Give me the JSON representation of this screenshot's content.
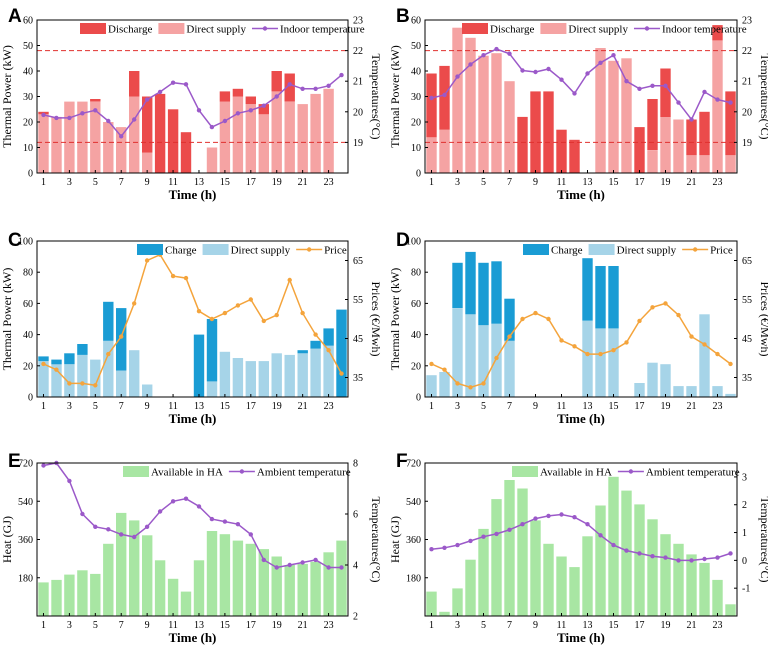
{
  "chart_data": [
    {
      "panel": "A",
      "type": "bar",
      "stacked": true,
      "categories": [
        1,
        2,
        3,
        4,
        5,
        6,
        7,
        8,
        9,
        10,
        11,
        12,
        13,
        14,
        15,
        16,
        17,
        18,
        19,
        20,
        21,
        22,
        23,
        24
      ],
      "xlabel": "Time (h)",
      "ylabel": "Thermal Power (kW)",
      "y2label": "Temperatures(°C)",
      "ylim": [
        0,
        60
      ],
      "y2lim": [
        18,
        23
      ],
      "xticks": [
        1,
        3,
        5,
        7,
        9,
        11,
        13,
        15,
        17,
        19,
        21,
        23
      ],
      "yticks": [
        0,
        10,
        20,
        30,
        40,
        50,
        60
      ],
      "y2ticks": [
        19,
        20,
        21,
        22,
        23
      ],
      "hlines": [
        22,
        19
      ],
      "series": [
        {
          "name": "Direct supply",
          "kind": "bar",
          "color": "#f5a3a3",
          "values": [
            23,
            22,
            28,
            28,
            28,
            20,
            18,
            30,
            8,
            0,
            0,
            0,
            0,
            10,
            28,
            30,
            27,
            23,
            32,
            28,
            27,
            31,
            33,
            0
          ]
        },
        {
          "name": "Discharge",
          "kind": "bar",
          "color": "#eb4b4b",
          "values": [
            1,
            0,
            0,
            0,
            1,
            0,
            0,
            10,
            22,
            31,
            25,
            16,
            0,
            0,
            4,
            3,
            3,
            4,
            8,
            11,
            0,
            0,
            0,
            0
          ]
        },
        {
          "name": "Indoor temperature",
          "kind": "line",
          "axis": "right",
          "color": "#9b59c9",
          "values": [
            19.9,
            19.8,
            19.8,
            19.95,
            20.05,
            19.7,
            19.2,
            19.75,
            20.4,
            20.65,
            20.95,
            20.9,
            20.05,
            19.5,
            19.7,
            19.95,
            20.05,
            20.2,
            20.5,
            20.9,
            20.75,
            20.75,
            20.85,
            21.2
          ]
        }
      ],
      "legend": [
        "Discharge",
        "Direct supply",
        "Indoor temperature"
      ]
    },
    {
      "panel": "B",
      "type": "bar",
      "stacked": true,
      "categories": [
        1,
        2,
        3,
        4,
        5,
        6,
        7,
        8,
        9,
        10,
        11,
        12,
        13,
        14,
        15,
        16,
        17,
        18,
        19,
        20,
        21,
        22,
        23,
        24
      ],
      "xlabel": "Time (h)",
      "ylabel": "Thermal Power (kW)",
      "y2label": "Temperatures(°C)",
      "ylim": [
        0,
        60
      ],
      "y2lim": [
        18,
        23
      ],
      "xticks": [
        1,
        3,
        5,
        7,
        9,
        11,
        13,
        15,
        17,
        19,
        21,
        23
      ],
      "yticks": [
        0,
        10,
        20,
        30,
        40,
        50,
        60
      ],
      "y2ticks": [
        19,
        20,
        21,
        22,
        23
      ],
      "hlines": [
        22,
        19
      ],
      "series": [
        {
          "name": "Direct supply",
          "kind": "bar",
          "color": "#f5a3a3",
          "values": [
            14,
            17,
            57,
            53,
            46,
            47,
            36,
            0,
            0,
            0,
            0,
            0,
            0,
            49,
            44,
            45,
            0,
            9,
            22,
            21,
            7,
            7,
            52,
            7
          ]
        },
        {
          "name": "Discharge",
          "kind": "bar",
          "color": "#eb4b4b",
          "values": [
            25,
            25,
            0,
            0,
            0,
            0,
            0,
            22,
            32,
            32,
            17,
            13,
            0,
            0,
            0,
            0,
            18,
            20,
            19,
            0,
            14,
            17,
            6,
            25
          ]
        },
        {
          "name": "Indoor temperature",
          "kind": "line",
          "axis": "right",
          "color": "#9b59c9",
          "values": [
            20.45,
            20.55,
            21.15,
            21.55,
            21.85,
            22.05,
            21.9,
            21.35,
            21.3,
            21.4,
            21.05,
            20.6,
            21.25,
            21.6,
            21.85,
            21.0,
            20.75,
            20.85,
            20.85,
            20.3,
            19.75,
            20.65,
            20.4,
            20.3
          ]
        }
      ],
      "legend": [
        "Discharge",
        "Direct supply",
        "Indoor temperature"
      ]
    },
    {
      "panel": "C",
      "type": "bar",
      "stacked": true,
      "categories": [
        1,
        2,
        3,
        4,
        5,
        6,
        7,
        8,
        9,
        10,
        11,
        12,
        13,
        14,
        15,
        16,
        17,
        18,
        19,
        20,
        21,
        22,
        23,
        24
      ],
      "xlabel": "Time (h)",
      "ylabel": "Thermal Power (kW)",
      "y2label": "Prices (€/Mwh)",
      "ylim": [
        0,
        100
      ],
      "y2lim": [
        30,
        70
      ],
      "xticks": [
        1,
        3,
        5,
        7,
        9,
        11,
        13,
        15,
        17,
        19,
        21,
        23
      ],
      "yticks": [
        0,
        20,
        40,
        60,
        80,
        100
      ],
      "y2ticks": [
        35,
        45,
        55,
        65
      ],
      "series": [
        {
          "name": "Direct supply",
          "kind": "bar",
          "color": "#a6d4e8",
          "values": [
            23,
            21,
            21,
            27,
            24,
            36,
            17,
            30,
            8,
            0,
            0,
            0,
            0,
            10,
            29,
            25,
            23,
            23,
            28,
            27,
            28,
            31,
            33,
            0
          ]
        },
        {
          "name": "Charge",
          "kind": "bar",
          "color": "#1a9cd4",
          "values": [
            3,
            3,
            7,
            7,
            0,
            25,
            40,
            0,
            0,
            0,
            0,
            0,
            40,
            40,
            0,
            0,
            0,
            0,
            0,
            0,
            2,
            5,
            11,
            56
          ]
        },
        {
          "name": "Price",
          "kind": "line",
          "axis": "right",
          "color": "#f4a43c",
          "values": [
            38.5,
            37,
            33.5,
            33.5,
            33,
            41,
            45.5,
            54,
            65,
            66.5,
            61,
            60.5,
            52,
            50,
            51.5,
            53.5,
            55,
            49.5,
            51,
            60,
            51.5,
            46,
            42,
            36
          ]
        }
      ],
      "legend": [
        "Charge",
        "Direct supply",
        "Price"
      ]
    },
    {
      "panel": "D",
      "type": "bar",
      "stacked": true,
      "categories": [
        1,
        2,
        3,
        4,
        5,
        6,
        7,
        8,
        9,
        10,
        11,
        12,
        13,
        14,
        15,
        16,
        17,
        18,
        19,
        20,
        21,
        22,
        23,
        24
      ],
      "xlabel": "Time (h)",
      "ylabel": "Thermal Power (kW)",
      "y2label": "Prices (€/Mwh)",
      "ylim": [
        0,
        100
      ],
      "y2lim": [
        30,
        70
      ],
      "xticks": [
        1,
        3,
        5,
        7,
        9,
        11,
        13,
        15,
        17,
        19,
        21,
        23
      ],
      "yticks": [
        0,
        20,
        40,
        60,
        80,
        100
      ],
      "y2ticks": [
        35,
        45,
        55,
        65
      ],
      "series": [
        {
          "name": "Direct supply",
          "kind": "bar",
          "color": "#a6d4e8",
          "values": [
            14,
            16,
            57,
            53,
            46,
            47,
            36,
            0,
            0,
            0,
            0,
            0,
            49,
            44,
            44,
            0,
            9,
            22,
            21,
            7,
            7,
            53,
            7,
            2
          ]
        },
        {
          "name": "Charge",
          "kind": "bar",
          "color": "#1a9cd4",
          "values": [
            0,
            0,
            29,
            40,
            40,
            40,
            27,
            0,
            0,
            0,
            0,
            0,
            40,
            40,
            40,
            0,
            0,
            0,
            0,
            0,
            0,
            0,
            0,
            0
          ]
        },
        {
          "name": "Price",
          "kind": "line",
          "axis": "right",
          "color": "#f4a43c",
          "values": [
            38.5,
            37,
            33.5,
            32.5,
            33.5,
            40,
            45.5,
            50,
            51.5,
            50,
            44.5,
            43,
            41,
            41,
            42,
            44,
            49.5,
            53,
            54,
            51,
            45.5,
            43.5,
            41,
            38.5
          ]
        }
      ],
      "legend": [
        "Charge",
        "Direct supply",
        "Price"
      ]
    },
    {
      "panel": "E",
      "type": "bar",
      "categories": [
        1,
        2,
        3,
        4,
        5,
        6,
        7,
        8,
        9,
        10,
        11,
        12,
        13,
        14,
        15,
        16,
        17,
        18,
        19,
        20,
        21,
        22,
        23,
        24
      ],
      "xlabel": "Time (h)",
      "ylabel": "Heat (GJ)",
      "y2label": "Temperatures(°C)",
      "ylim": [
        0,
        720
      ],
      "y2lim": [
        2,
        8
      ],
      "xticks": [
        1,
        3,
        5,
        7,
        9,
        11,
        13,
        15,
        17,
        19,
        21,
        23
      ],
      "yticks": [
        180,
        360,
        540,
        720
      ],
      "y2ticks": [
        2,
        4,
        6,
        8
      ],
      "series": [
        {
          "name": "Available in HA",
          "kind": "bar",
          "color": "#a8e6a3",
          "values": [
            158,
            170,
            195,
            215,
            198,
            340,
            485,
            450,
            380,
            262,
            175,
            115,
            262,
            400,
            385,
            355,
            340,
            315,
            280,
            240,
            245,
            255,
            300,
            355
          ]
        },
        {
          "name": "Ambient temperature",
          "kind": "line",
          "axis": "right",
          "color": "#9b59c9",
          "values": [
            7.9,
            8.0,
            7.3,
            6.0,
            5.5,
            5.4,
            5.2,
            5.1,
            5.5,
            6.1,
            6.5,
            6.6,
            6.3,
            5.8,
            5.7,
            5.6,
            5.2,
            4.2,
            3.9,
            4.0,
            4.1,
            4.2,
            3.9,
            3.9
          ]
        }
      ],
      "legend": [
        "Available in HA",
        "Ambient temperature"
      ]
    },
    {
      "panel": "F",
      "type": "bar",
      "categories": [
        1,
        2,
        3,
        4,
        5,
        6,
        7,
        8,
        9,
        10,
        11,
        12,
        13,
        14,
        15,
        16,
        17,
        18,
        19,
        20,
        21,
        22,
        23,
        24
      ],
      "xlabel": "Time (h)",
      "ylabel": "Heat (GJ)",
      "y2label": "Temperatures(°C)",
      "ylim": [
        0,
        720
      ],
      "y2lim": [
        -2,
        3.5
      ],
      "xticks": [
        1,
        3,
        5,
        7,
        9,
        11,
        13,
        15,
        17,
        19,
        21,
        23
      ],
      "yticks": [
        180,
        360,
        540,
        720
      ],
      "y2ticks": [
        -1,
        0,
        1,
        2,
        3
      ],
      "series": [
        {
          "name": "Available in HA",
          "kind": "bar",
          "color": "#a8e6a3",
          "values": [
            115,
            20,
            130,
            265,
            410,
            550,
            640,
            600,
            450,
            340,
            280,
            230,
            375,
            520,
            655,
            590,
            525,
            455,
            385,
            340,
            290,
            250,
            170,
            55
          ]
        },
        {
          "name": "Ambient temperature",
          "kind": "line",
          "axis": "right",
          "color": "#9b59c9",
          "values": [
            0.4,
            0.45,
            0.55,
            0.7,
            0.85,
            0.95,
            1.1,
            1.3,
            1.5,
            1.6,
            1.65,
            1.55,
            1.3,
            0.9,
            0.55,
            0.35,
            0.25,
            0.15,
            0.1,
            0.0,
            0.0,
            0.05,
            0.1,
            0.25
          ]
        }
      ],
      "legend": [
        "Available in HA",
        "Ambient temperature"
      ]
    }
  ]
}
